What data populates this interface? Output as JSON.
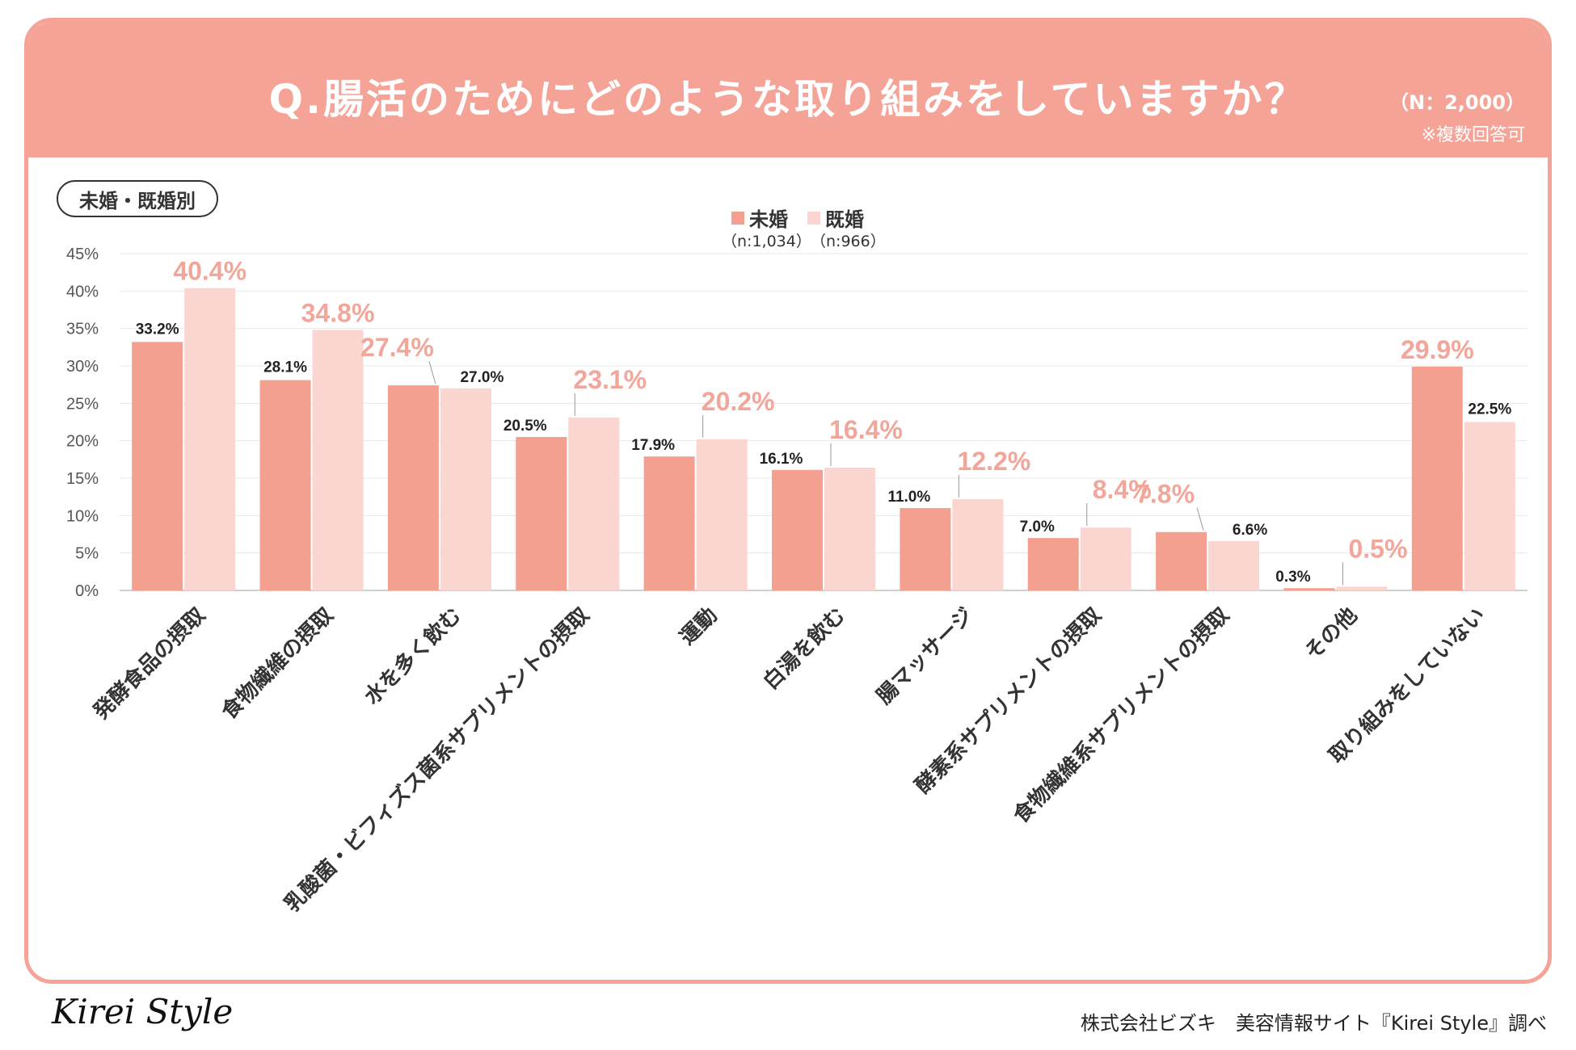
{
  "header": {
    "title": "Q.腸活のためにどのような取り組みをしていますか？",
    "n_label": "（N：2,000）",
    "note": "※複数回答可"
  },
  "segment_pill": "未婚・既婚別",
  "footer": {
    "logo": "Kirei Style",
    "credit": "株式会社ビズキ　美容情報サイト『Kirei Style』調べ"
  },
  "colors": {
    "header_bg": "#f5a397",
    "unmarried": "#f4a091",
    "married": "#fbd5d0",
    "highlight_label": "#f2a69a",
    "normal_label": "#222222"
  },
  "chart_data": {
    "type": "bar",
    "title": "Q.腸活のためにどのような取り組みをしていますか？",
    "ylim": [
      0,
      45
    ],
    "yticks": [
      0,
      5,
      10,
      15,
      20,
      25,
      30,
      35,
      40,
      45
    ],
    "ytick_labels": [
      "0%",
      "5%",
      "10%",
      "15%",
      "20%",
      "25%",
      "30%",
      "35%",
      "40%",
      "45%"
    ],
    "legend_position": "top-center",
    "categories": [
      "発酵食品の摂取",
      "食物繊維の摂取",
      "水を多く飲む",
      "乳酸菌・ビフィズス菌系サプリメントの摂取",
      "運動",
      "白湯を飲む",
      "腸マッサージ",
      "酵素系サプリメントの摂取",
      "食物繊維系サプリメントの摂取",
      "その他",
      "取り組みをしていない"
    ],
    "series": [
      {
        "name": "未婚",
        "sample": "（n:1,034）",
        "values": [
          33.2,
          28.1,
          27.4,
          20.5,
          17.9,
          16.1,
          11.0,
          7.0,
          7.8,
          0.3,
          29.9
        ],
        "labels": [
          "33.2%",
          "28.1%",
          "27.4%",
          "20.5%",
          "17.9%",
          "16.1%",
          "11.0%",
          "7.0%",
          "7.8%",
          "0.3%",
          "29.9%"
        ]
      },
      {
        "name": "既婚",
        "sample": "（n:966）",
        "values": [
          40.4,
          34.8,
          27.0,
          23.1,
          20.2,
          16.4,
          12.2,
          8.4,
          6.6,
          0.5,
          22.5
        ],
        "labels": [
          "40.4%",
          "34.8%",
          "27.0%",
          "23.1%",
          "20.2%",
          "16.4%",
          "12.2%",
          "8.4%",
          "6.6%",
          "0.5%",
          "22.5%"
        ]
      }
    ]
  }
}
